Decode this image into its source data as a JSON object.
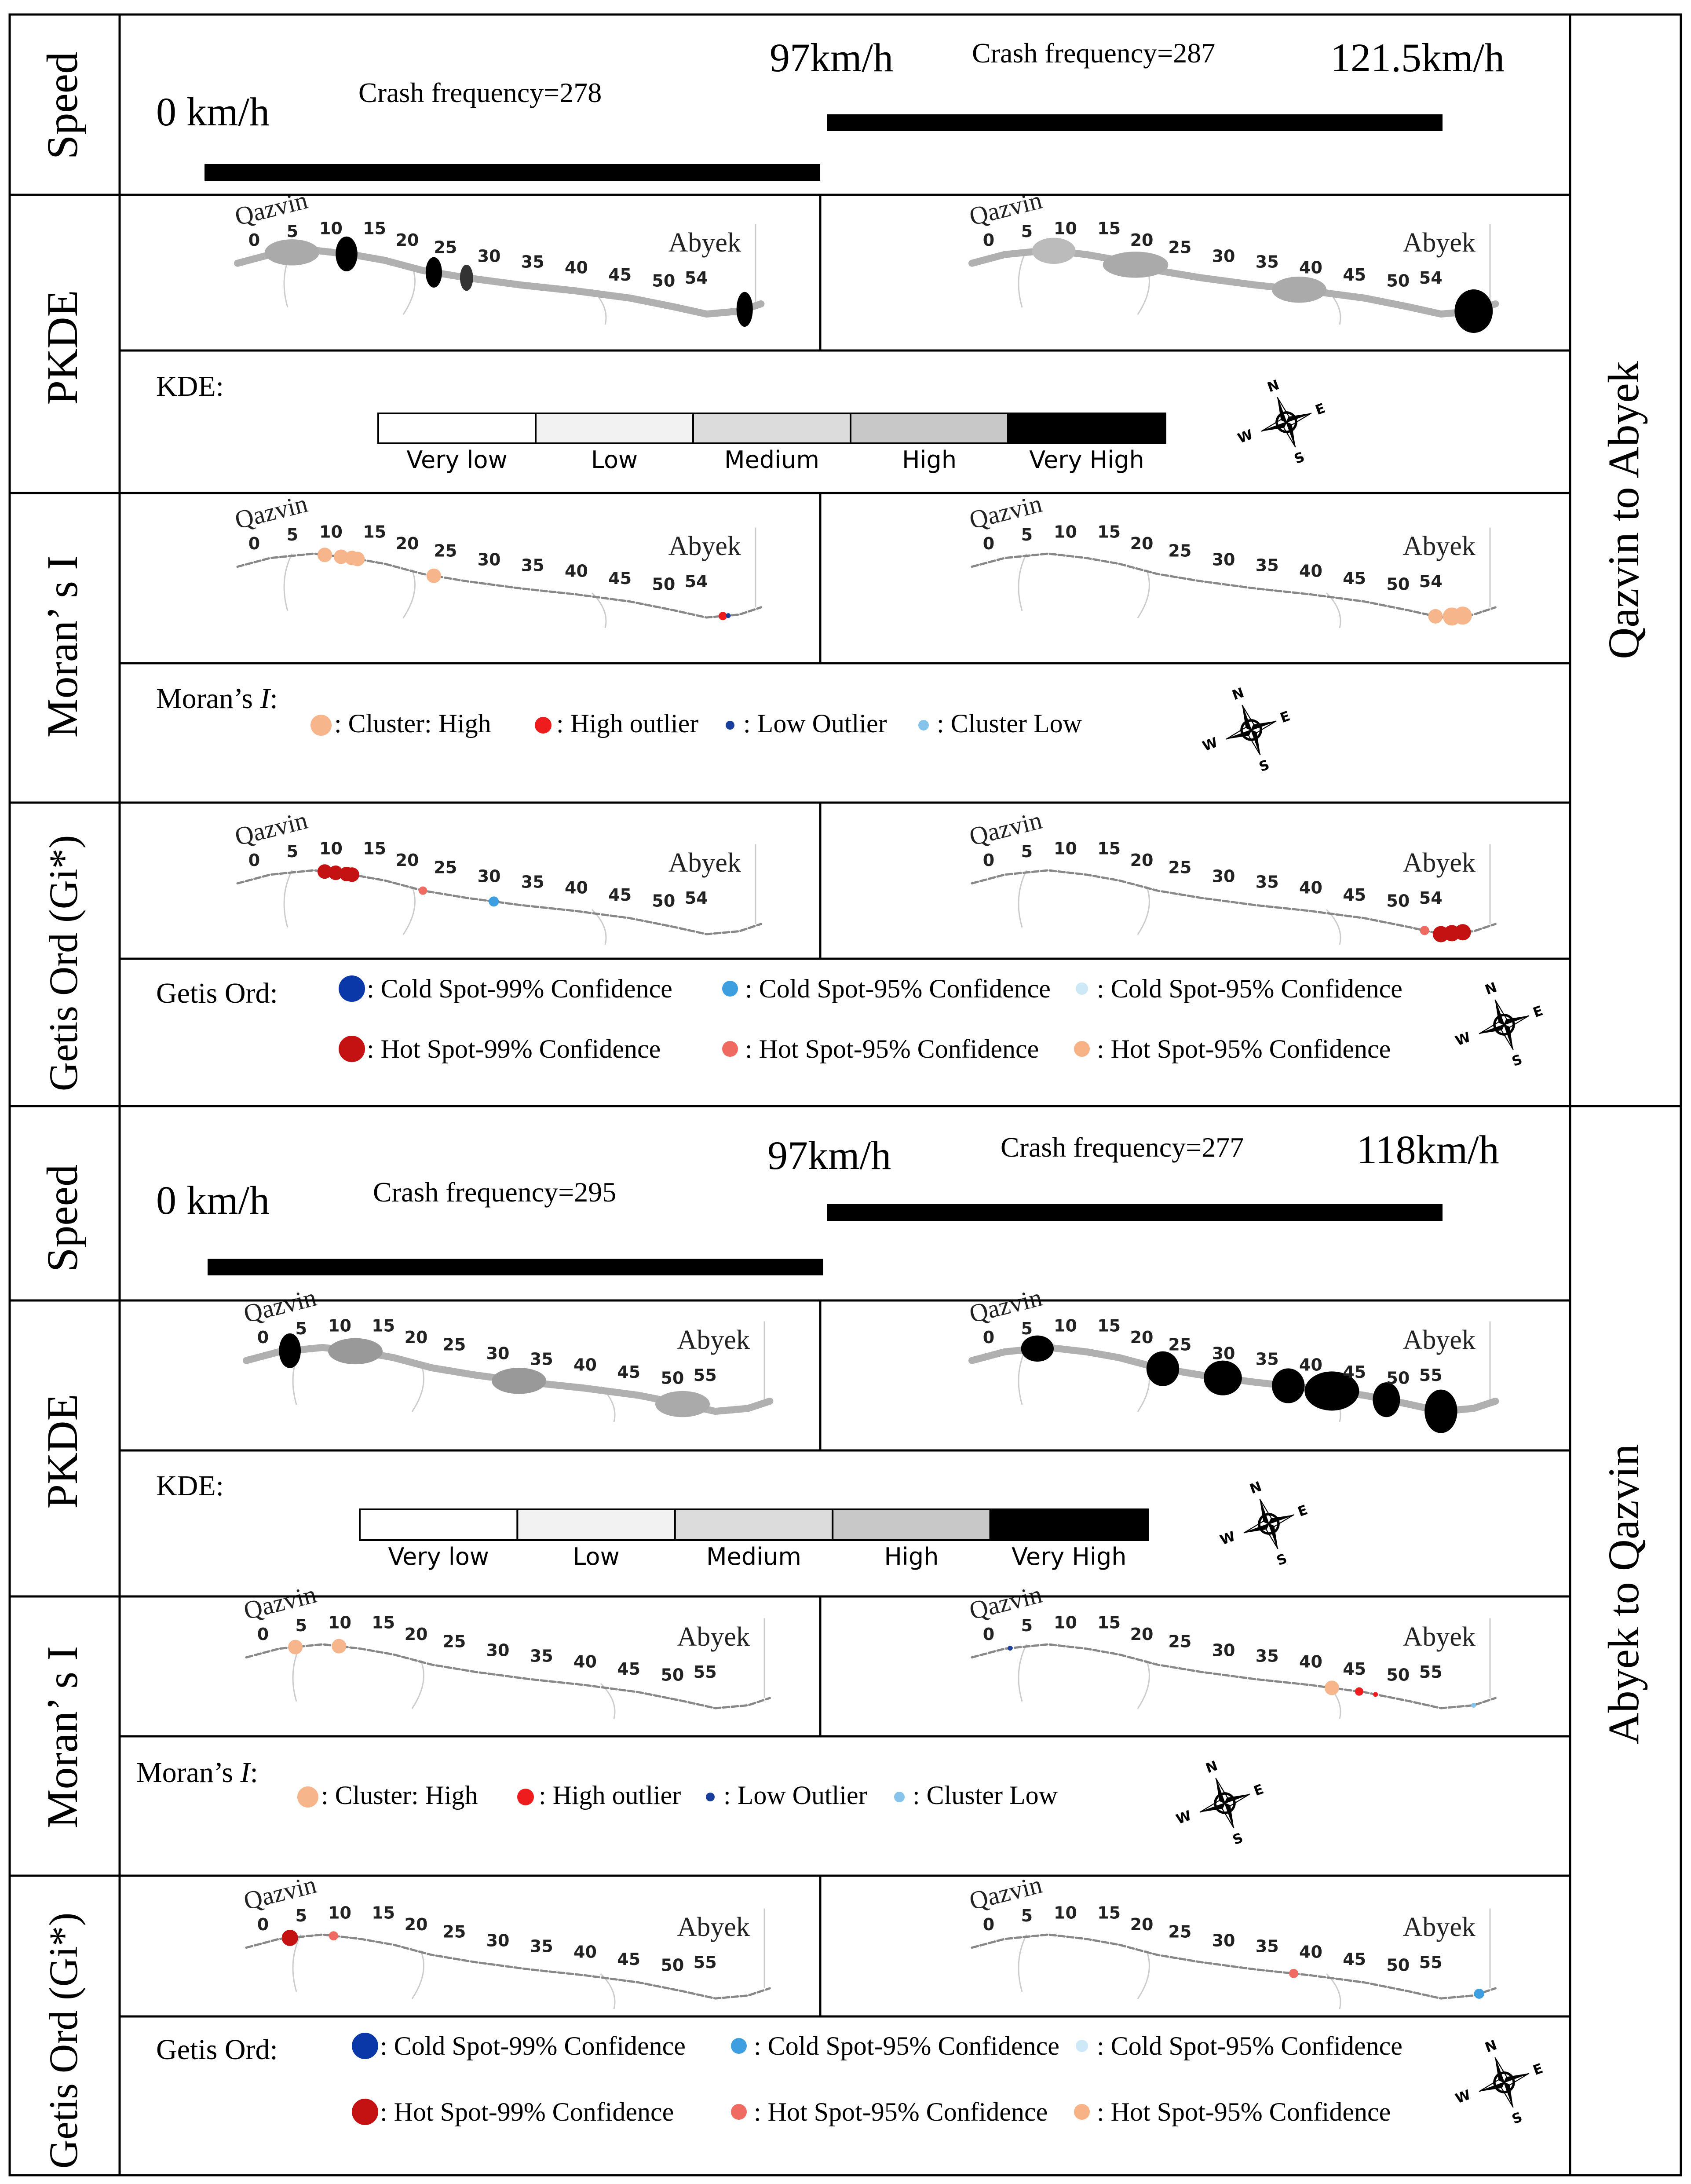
{
  "sections": [
    {
      "direction": "Qazvin to Abyek",
      "speed": {
        "row_label": "Speed",
        "start_speed": "0 km/h",
        "mid_speed": "97km/h",
        "end_speed": "121.5km/h",
        "left_crash": "Crash frequency=278",
        "right_crash": "Crash frequency=287"
      },
      "pkde": {
        "row_label": "PKDE",
        "km_left": [
          "0",
          "5",
          "10",
          "15",
          "20",
          "25",
          "30",
          "35",
          "40",
          "45",
          "50",
          "54"
        ],
        "km_right": [
          "0",
          "5",
          "10",
          "15",
          "20",
          "25",
          "30",
          "35",
          "40",
          "45",
          "50",
          "54"
        ],
        "city_start": "Qazvin",
        "city_end": "Abyek"
      },
      "kde_legend": {
        "title": "KDE:",
        "levels": [
          {
            "label": "Very low",
            "color": "#ffffff"
          },
          {
            "label": "Low",
            "color": "#f2f2f2"
          },
          {
            "label": "Medium",
            "color": "#dcdcdc"
          },
          {
            "label": "High",
            "color": "#c8c8c8"
          },
          {
            "label": "Very High",
            "color": "#000000"
          }
        ]
      },
      "moran": {
        "row_label": "Moran’ s I",
        "km": [
          "0",
          "5",
          "10",
          "15",
          "20",
          "25",
          "30",
          "35",
          "40",
          "45",
          "50",
          "54"
        ],
        "legend_title": "Moran’s ",
        "legend_title_italic": "I",
        "legend_title_colon": ":",
        "items": [
          {
            "label": ": Cluster: High",
            "color": "#f7b58c"
          },
          {
            "label": ": High outlier",
            "color": "#ee1c1c"
          },
          {
            "label": ": Low Outlier",
            "color": "#1a3e9c"
          },
          {
            "label": ": Cluster Low",
            "color": "#86c4ec"
          }
        ]
      },
      "getis": {
        "row_label": "Getis Ord (Gi*)",
        "legend_title": "Getis Ord:",
        "row1": [
          {
            "label": ": Cold Spot-99% Confidence",
            "color": "#0a38a8"
          },
          {
            "label": ": Cold Spot-95% Confidence",
            "color": "#3d9fdf"
          },
          {
            "label": ": Cold Spot-95% Confidence",
            "color": "#cde9f8"
          }
        ],
        "row2": [
          {
            "label": ": Hot Spot-99% Confidence",
            "color": "#c41212"
          },
          {
            "label": ": Hot Spot-95% Confidence",
            "color": "#ef6a61"
          },
          {
            "label": ": Hot Spot-95% Confidence",
            "color": "#f7b286"
          }
        ]
      }
    },
    {
      "direction": "Abyek to Qazvin",
      "speed": {
        "row_label": "Speed",
        "start_speed": "0 km/h",
        "mid_speed": "97km/h",
        "end_speed": "118km/h",
        "left_crash": "Crash frequency=295",
        "right_crash": "Crash frequency=277"
      },
      "pkde": {
        "row_label": "PKDE",
        "km_left": [
          "0",
          "5",
          "10",
          "15",
          "20",
          "25",
          "30",
          "35",
          "40",
          "45",
          "50",
          "55"
        ],
        "km_right": [
          "0",
          "5",
          "10",
          "15",
          "20",
          "25",
          "30",
          "35",
          "40",
          "45",
          "50",
          "55"
        ],
        "city_start": "Qazvin",
        "city_end": "Abyek"
      },
      "kde_legend": {
        "title": "KDE:",
        "levels": [
          {
            "label": "Very low",
            "color": "#ffffff"
          },
          {
            "label": "Low",
            "color": "#f2f2f2"
          },
          {
            "label": "Medium",
            "color": "#dcdcdc"
          },
          {
            "label": "High",
            "color": "#c8c8c8"
          },
          {
            "label": "Very High",
            "color": "#000000"
          }
        ]
      },
      "moran": {
        "row_label": "Moran’ s I",
        "km": [
          "0",
          "5",
          "10",
          "15",
          "20",
          "25",
          "30",
          "35",
          "40",
          "45",
          "50",
          "55"
        ],
        "legend_title": "Moran’s ",
        "legend_title_italic": "I",
        "legend_title_colon": ":",
        "items": [
          {
            "label": ": Cluster: High",
            "color": "#f7b58c"
          },
          {
            "label": ": High outlier",
            "color": "#ee1c1c"
          },
          {
            "label": ": Low Outlier",
            "color": "#1a3e9c"
          },
          {
            "label": ": Cluster Low",
            "color": "#86c4ec"
          }
        ]
      },
      "getis": {
        "row_label": "Getis Ord (Gi*)",
        "legend_title": "Getis Ord:",
        "row1": [
          {
            "label": ": Cold Spot-99% Confidence",
            "color": "#0a38a8"
          },
          {
            "label": ": Cold Spot-95% Confidence",
            "color": "#3d9fdf"
          },
          {
            "label": ": Cold Spot-95% Confidence",
            "color": "#cde9f8"
          }
        ],
        "row2": [
          {
            "label": ": Hot Spot-99% Confidence",
            "color": "#c41212"
          },
          {
            "label": ": Hot Spot-95% Confidence",
            "color": "#ef6a61"
          },
          {
            "label": ": Hot Spot-95% Confidence",
            "color": "#f7b286"
          }
        ]
      }
    }
  ],
  "compass": {
    "n": "N",
    "e": "E",
    "s": "S",
    "w": "W"
  }
}
